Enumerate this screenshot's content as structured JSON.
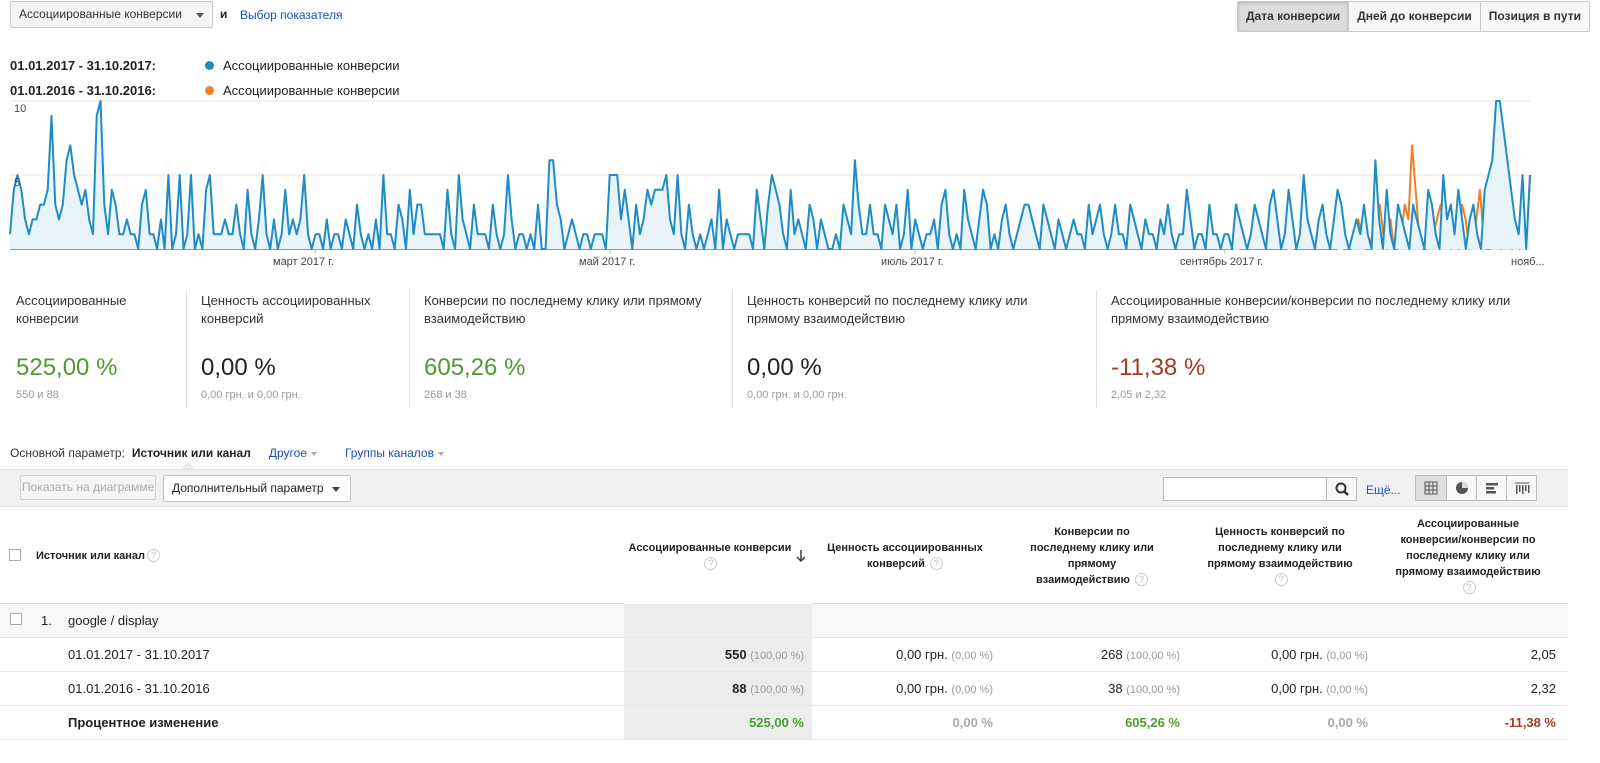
{
  "header": {
    "metric_select": "Ассоциированные конверсии",
    "and_text": "и",
    "choose_metric": "Выбор показателя",
    "view_tabs": [
      "Дата конверсии",
      "Дней до конверсии",
      "Позиция в пути"
    ]
  },
  "legend": [
    {
      "range": "01.01.2017 - 31.10.2017:",
      "name": "Ассоциированные конверсии",
      "color": "#1f8cc6"
    },
    {
      "range": "01.01.2016 - 31.10.2016:",
      "name": "Ассоциированные конверсии",
      "color": "#f08020"
    }
  ],
  "chart_data": {
    "type": "line",
    "y_ticks": [
      "10",
      "5"
    ],
    "ylim": [
      0,
      10
    ],
    "x_tick_labels": [
      "март 2017 г.",
      "май 2017 г.",
      "июль 2017 г.",
      "сентябрь 2017 г.",
      "нояб..."
    ],
    "series": [
      {
        "name": "01.01.2017 - 31.10.2017",
        "color": "#1f8cc6",
        "values": [
          1,
          4,
          5,
          4,
          2,
          1,
          2,
          2,
          3,
          3,
          4,
          9,
          3,
          2,
          3,
          6,
          7,
          5,
          4,
          3,
          4,
          2,
          1,
          9,
          10,
          3,
          1,
          4,
          3,
          1,
          1,
          2,
          1,
          1,
          0,
          3,
          4,
          1,
          1,
          0,
          2,
          0,
          5,
          0,
          1,
          5,
          0,
          1,
          5,
          0,
          1,
          0,
          4,
          5,
          1,
          1,
          1,
          2,
          1,
          1,
          3,
          1,
          0,
          4,
          1,
          0,
          2,
          5,
          1,
          0,
          2,
          0,
          1,
          4,
          1,
          2,
          1,
          2,
          5,
          1,
          0,
          1,
          1,
          0,
          2,
          0,
          1,
          1,
          0,
          2,
          1,
          0,
          3,
          1,
          0,
          1,
          0,
          2,
          0,
          5,
          1,
          1,
          0,
          3,
          2,
          0,
          4,
          1,
          3,
          3,
          1,
          1,
          1,
          1,
          1,
          0,
          4,
          1,
          0,
          5,
          2,
          1,
          0,
          3,
          1,
          1,
          1,
          0,
          3,
          1,
          0,
          1,
          5,
          2,
          0,
          1,
          1,
          0,
          1,
          0,
          3,
          0,
          0,
          6,
          6,
          3,
          2,
          0,
          1,
          2,
          1,
          0,
          1,
          1,
          0,
          1,
          1,
          1,
          0,
          5,
          5,
          5,
          2,
          4,
          2,
          0,
          3,
          1,
          2,
          4,
          3,
          4,
          4,
          4,
          5,
          2,
          1,
          5,
          1,
          0,
          3,
          1,
          0,
          1,
          0,
          1,
          2,
          0,
          4,
          0,
          2,
          1,
          0,
          1,
          1,
          1,
          1,
          0,
          4,
          2,
          0,
          3,
          5,
          4,
          3,
          1,
          0,
          4,
          1,
          2,
          1,
          0,
          3,
          2,
          0,
          2,
          1,
          0,
          0,
          1,
          0,
          3,
          2,
          1,
          6,
          3,
          1,
          1,
          3,
          1,
          1,
          0,
          3,
          2,
          1,
          3,
          0,
          1,
          4,
          0,
          2,
          1,
          0,
          1,
          1,
          2,
          0,
          3,
          4,
          1,
          0,
          1,
          0,
          4,
          2,
          1,
          0,
          2,
          4,
          3,
          0,
          1,
          0,
          2,
          3,
          1,
          0,
          1,
          2,
          3,
          3,
          2,
          1,
          0,
          3,
          2,
          1,
          0,
          2,
          1,
          0,
          1,
          2,
          1,
          1,
          0,
          3,
          1,
          2,
          3,
          1,
          0,
          1,
          3,
          1,
          1,
          0,
          3,
          2,
          1,
          0,
          2,
          1,
          1,
          0,
          2,
          1,
          3,
          1,
          0,
          1,
          1,
          4,
          2,
          0,
          1,
          1,
          0,
          3,
          1,
          1,
          0,
          1,
          1,
          0,
          3,
          2,
          1,
          0,
          1,
          3,
          2,
          1,
          0,
          3,
          4,
          2,
          0,
          1,
          4,
          2,
          0,
          1,
          5,
          2,
          1,
          0,
          2,
          3,
          1,
          0,
          2,
          4,
          3,
          1,
          0,
          1,
          2,
          1,
          3,
          1,
          0,
          6,
          2,
          0,
          4,
          1,
          0,
          3,
          2,
          1,
          0,
          3,
          2,
          1,
          0,
          4,
          3,
          1,
          0,
          5,
          2,
          3,
          1,
          4,
          2,
          0,
          2,
          3,
          1,
          0,
          4,
          5,
          6,
          10,
          10,
          8,
          6,
          4,
          2,
          1,
          5,
          0,
          5
        ]
      },
      {
        "name": "01.01.2016 - 31.10.2016",
        "color": "#f08020",
        "values": [
          0,
          0,
          0,
          0,
          0,
          0,
          0,
          0,
          0,
          0,
          0,
          0,
          0,
          0,
          0,
          0,
          0,
          0,
          0,
          0,
          0,
          0,
          0,
          0,
          0,
          0,
          0,
          0,
          0,
          0,
          0,
          0,
          0,
          0,
          0,
          0,
          0,
          0,
          0,
          0,
          0,
          0,
          0,
          0,
          0,
          0,
          0,
          0,
          0,
          0,
          0,
          0,
          0,
          0,
          0,
          0,
          0,
          0,
          0,
          0,
          0,
          0,
          0,
          0,
          0,
          0,
          0,
          0,
          0,
          0,
          0,
          0,
          0,
          0,
          0,
          0,
          0,
          0,
          0,
          0,
          0,
          0,
          0,
          0,
          0,
          0,
          0,
          0,
          0,
          0,
          0,
          0,
          0,
          0,
          0,
          0,
          0,
          0,
          0,
          0,
          0,
          0,
          0,
          0,
          0,
          0,
          0,
          0,
          0,
          0,
          0,
          0,
          0,
          0,
          0,
          0,
          0,
          0,
          0,
          0,
          0,
          0,
          0,
          0,
          0,
          0,
          0,
          0,
          0,
          0,
          0,
          0,
          0,
          0,
          0,
          0,
          0,
          0,
          0,
          0,
          0,
          0,
          0,
          0,
          0,
          0,
          0,
          0,
          0,
          0,
          0,
          0,
          0,
          0,
          0,
          0,
          0,
          0,
          0,
          0,
          0,
          0,
          0,
          0,
          0,
          0,
          0,
          0,
          0,
          0,
          0,
          0,
          0,
          0,
          0,
          0,
          0,
          0,
          0,
          0,
          0,
          0,
          0,
          0,
          0,
          0,
          0,
          0,
          0,
          0,
          0,
          0,
          0,
          0,
          0,
          0,
          0,
          0,
          0,
          0,
          0,
          0,
          0,
          0,
          0,
          0,
          0,
          0,
          0,
          0,
          0,
          0,
          0,
          0,
          0,
          0,
          0,
          0,
          0,
          0,
          0,
          0,
          0,
          0,
          0,
          0,
          0,
          0,
          0,
          0,
          0,
          0,
          0,
          0,
          0,
          0,
          0,
          0,
          0,
          0,
          0,
          0,
          0,
          0,
          0,
          0,
          0,
          0,
          0,
          0,
          0,
          0,
          0,
          0,
          0,
          0,
          0,
          0,
          0,
          0,
          0,
          0,
          0,
          0,
          0,
          0,
          0,
          0,
          0,
          0,
          0,
          0,
          0,
          0,
          0,
          0,
          0,
          0,
          0,
          0,
          0,
          0,
          0,
          0,
          0,
          0,
          0,
          0,
          0,
          0,
          0,
          0,
          0,
          0,
          0,
          0,
          0,
          0,
          0,
          0,
          0,
          0,
          0,
          0,
          0,
          0,
          0,
          0,
          0,
          0,
          0,
          0,
          0,
          0,
          0,
          0,
          0,
          0,
          0,
          0,
          0,
          0,
          0,
          0,
          0,
          0,
          0,
          0,
          0,
          0,
          0,
          0,
          0,
          0,
          0,
          0,
          0,
          0,
          0,
          0,
          0,
          0,
          0,
          3,
          0,
          0,
          0,
          0,
          0,
          0,
          0,
          0,
          0,
          0,
          0,
          0,
          0,
          0,
          1,
          0,
          0,
          0,
          0,
          0,
          0,
          0,
          0,
          0,
          0,
          0,
          0,
          0,
          1,
          0,
          0,
          0,
          1,
          2,
          1,
          0,
          0,
          1,
          2,
          3,
          1,
          0,
          2,
          0,
          0,
          1,
          3,
          2,
          7,
          4,
          1,
          0,
          0,
          1,
          1,
          2,
          3,
          1,
          2,
          0,
          1,
          0,
          3,
          2,
          0,
          1,
          2,
          4,
          1,
          0,
          0,
          2,
          1,
          0,
          3,
          2,
          0,
          1,
          0,
          1,
          0,
          5
        ]
      }
    ]
  },
  "scorecards": [
    {
      "title": "Ассоциированные конверсии",
      "value": "525,00 %",
      "sub": "550 и 88",
      "tone": "green"
    },
    {
      "title": "Ценность ассоциированных конверсий",
      "value": "0,00 %",
      "sub": "0,00 грн. и 0,00 грн.",
      "tone": "dark"
    },
    {
      "title": "Конверсии по последнему клику или прямому взаимодействию",
      "value": "605,26 %",
      "sub": "268 и 38",
      "tone": "green"
    },
    {
      "title": "Ценность конверсий по последнему клику или прямому взаимодействию",
      "value": "0,00 %",
      "sub": "0,00 грн. и 0,00 грн.",
      "tone": "dark"
    },
    {
      "title": "Ассоциированные конверсии/конверсии по последнему клику или прямому взаимодействию",
      "value": "-11,38 %",
      "sub": "2,05 и 2,32",
      "tone": "red"
    }
  ],
  "primary_dimension": {
    "label": "Основной параметр:",
    "current": "Источник или канал",
    "other": "Другое",
    "channel_groups": "Группы каналов"
  },
  "toolbar": {
    "plot_button": "Показать на диаграмме",
    "secondary_dimension": "Дополнительный параметр",
    "search_placeholder": "",
    "more": "Ещё..."
  },
  "table": {
    "headers": [
      "Источник или канал",
      "Ассоциированные конверсии",
      "Ценность ассоциированных конверсий",
      "Конверсии по последнему клику или прямому взаимодействию",
      "Ценность конверсий по последнему клику или прямому взаимодействию",
      "Ассоциированные конверсии/конверсии по последнему клику или прямому взаимодействию"
    ],
    "group": {
      "index": "1.",
      "name": "google / display"
    },
    "rows": [
      {
        "label": "01.01.2017 - 31.10.2017",
        "c1": "550",
        "c1p": "(100,00 %)",
        "c2": "0,00 грн.",
        "c2p": "(0,00 %)",
        "c3": "268",
        "c3p": "(100,00 %)",
        "c4": "0,00 грн.",
        "c4p": "(0,00 %)",
        "c5": "2,05"
      },
      {
        "label": "01.01.2016 - 31.10.2016",
        "c1": "88",
        "c1p": "(100,00 %)",
        "c2": "0,00 грн.",
        "c2p": "(0,00 %)",
        "c3": "38",
        "c3p": "(100,00 %)",
        "c4": "0,00 грн.",
        "c4p": "(0,00 %)",
        "c5": "2,32"
      }
    ],
    "change": {
      "label": "Процентное изменение",
      "c1": "525,00 %",
      "c2": "0,00 %",
      "c3": "605,26 %",
      "c4": "0,00 %",
      "c5": "-11,38 %"
    }
  }
}
